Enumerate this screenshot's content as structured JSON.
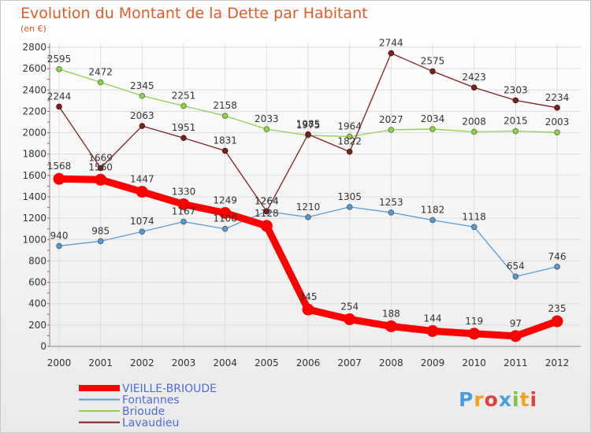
{
  "chart_data": {
    "type": "line",
    "title": "Evolution du Montant de la Dette par Habitant",
    "subtitle": "(en €)",
    "xlabel": "",
    "ylabel": "",
    "x": [
      2000,
      2001,
      2002,
      2003,
      2004,
      2005,
      2006,
      2007,
      2008,
      2009,
      2010,
      2011,
      2012
    ],
    "ylim": [
      0,
      2800
    ],
    "yticks": [
      0,
      200,
      400,
      600,
      800,
      1000,
      1200,
      1400,
      1600,
      1800,
      2000,
      2200,
      2400,
      2600,
      2800
    ],
    "grid": true,
    "legend_position": "bottom-left",
    "series": [
      {
        "name": "VIEILLE-BRIOUDE",
        "color": "#ff0000",
        "emphasis": true,
        "values": [
          1568,
          1560,
          1447,
          1330,
          1249,
          1128,
          345,
          254,
          188,
          144,
          119,
          97,
          235
        ]
      },
      {
        "name": "Fontannes",
        "color": "#5d9bce",
        "values": [
          940,
          985,
          1074,
          1167,
          1100,
          1264,
          1210,
          1305,
          1253,
          1182,
          1118,
          654,
          746
        ]
      },
      {
        "name": "Brioude",
        "color": "#92d050",
        "values": [
          2595,
          2472,
          2345,
          2251,
          2158,
          2033,
          1975,
          1964,
          2027,
          2034,
          2008,
          2015,
          2003
        ]
      },
      {
        "name": "Lavaudieu",
        "color": "#7b2222",
        "values": [
          2244,
          1669,
          2063,
          1951,
          1831,
          1264,
          1985,
          1822,
          2744,
          2575,
          2423,
          2303,
          2234
        ]
      }
    ]
  },
  "watermark": "Proxiti"
}
